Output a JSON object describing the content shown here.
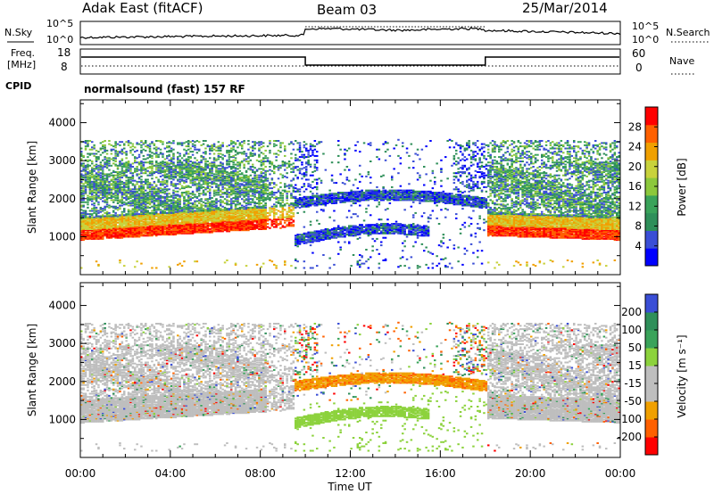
{
  "header": {
    "station": "Adak East (fitACF)",
    "beam": "Beam 03",
    "date": "25/Mar/2014"
  },
  "strip": {
    "nsky_label": "N.Sky",
    "nsearch_label": "N.Search",
    "freq_label_1": "Freq.",
    "freq_label_2": "[MHz]",
    "nave_label": "Nave",
    "cpid_label": "CPID",
    "cpid_value": "normalsound (fast) 157 RF",
    "noise_ticks_left": [
      "10^5",
      "10^0"
    ],
    "noise_ticks_right": [
      "10^5",
      "10^0"
    ],
    "freq_ticks": [
      "18",
      "8"
    ],
    "nave_ticks": [
      "60",
      "0"
    ]
  },
  "colors": {
    "power": [
      "#0000ff",
      "#3a4ed6",
      "#2f8f5a",
      "#3aa35a",
      "#8cc83c",
      "#c8d23c",
      "#f0a000",
      "#ff6000",
      "#ff0000"
    ],
    "velocity": [
      "#ff0000",
      "#ff6000",
      "#f0a000",
      "#bebebe",
      "#bebebe",
      "#8cd23c",
      "#3aa35a",
      "#2f8f5a",
      "#3a4ed6"
    ]
  },
  "chart_data": [
    {
      "type": "heatmap",
      "name": "power",
      "xlabel": "",
      "ylabel": "Slant Range [km]",
      "x_ticks": [
        "00:00",
        "04:00",
        "08:00",
        "12:00",
        "16:00",
        "20:00",
        "00:00"
      ],
      "y_ticks": [
        1000,
        2000,
        3000,
        4000
      ],
      "ylim": [
        0,
        4600
      ],
      "xlim_hours": [
        0,
        24
      ],
      "colorbar": {
        "label": "Power [dB]",
        "ticks": [
          4,
          8,
          12,
          16,
          20,
          24,
          28
        ],
        "range": [
          0,
          32
        ]
      }
    },
    {
      "type": "heatmap",
      "name": "velocity",
      "xlabel": "Time UT",
      "ylabel": "Slant Range [km]",
      "x_ticks": [
        "00:00",
        "04:00",
        "08:00",
        "12:00",
        "16:00",
        "20:00",
        "00:00"
      ],
      "y_ticks": [
        1000,
        2000,
        3000,
        4000
      ],
      "ylim": [
        0,
        4600
      ],
      "xlim_hours": [
        0,
        24
      ],
      "colorbar": {
        "label": "Velocity [m s⁻¹]",
        "ticks": [
          "-200",
          "-100",
          "-50",
          "-15",
          "15",
          "50",
          "100",
          "200"
        ]
      }
    }
  ]
}
